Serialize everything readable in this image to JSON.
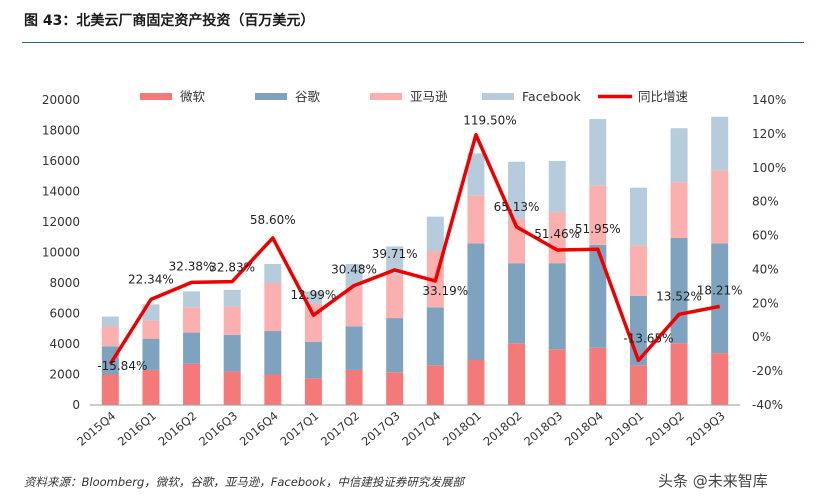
{
  "title": "图 43：北美云厂商固定资产投资（百万美元）",
  "source": "资料来源：Bloomberg，微软，谷歌，亚马逊，Facebook，中信建投证券研究发展部",
  "watermark": "头条 @未来智库",
  "chart_data": {
    "type": "bar",
    "stacked": true,
    "categories": [
      "2015Q4",
      "2016Q1",
      "2016Q2",
      "2016Q3",
      "2016Q4",
      "2017Q1",
      "2017Q2",
      "2017Q3",
      "2017Q4",
      "2018Q1",
      "2018Q2",
      "2018Q3",
      "2018Q4",
      "2019Q1",
      "2019Q2",
      "2019Q3"
    ],
    "series": [
      {
        "name": "微软",
        "color": "#f47a7a",
        "values": [
          2000,
          2300,
          2700,
          2200,
          2000,
          1750,
          2300,
          2150,
          2600,
          2950,
          4050,
          3650,
          3750,
          2600,
          4050,
          3400
        ]
      },
      {
        "name": "谷歌",
        "color": "#7fa3be",
        "values": [
          1850,
          2050,
          2050,
          2400,
          2850,
          2400,
          2850,
          3550,
          3800,
          7650,
          5250,
          5650,
          6750,
          4550,
          6900,
          7200
        ]
      },
      {
        "name": "亚马逊",
        "color": "#fbb0b0",
        "values": [
          1300,
          1200,
          1650,
          1850,
          3150,
          2500,
          2600,
          2850,
          3700,
          3150,
          2900,
          3350,
          3900,
          3300,
          3650,
          4800
        ]
      },
      {
        "name": "Facebook",
        "color": "#b6cbdb",
        "values": [
          650,
          1050,
          1050,
          1100,
          1250,
          800,
          1500,
          1850,
          2250,
          2750,
          3750,
          3350,
          4350,
          3800,
          3550,
          3500
        ]
      }
    ],
    "line": {
      "name": "同比增速",
      "color": "#ee0000",
      "values": [
        -15.84,
        22.34,
        32.38,
        32.83,
        58.6,
        12.99,
        30.48,
        39.71,
        33.19,
        119.5,
        65.13,
        51.46,
        51.95,
        -13.65,
        13.52,
        18.21
      ],
      "labels": [
        "-15.84%",
        "22.34%",
        "32.38%",
        "32.83%",
        "58.60%",
        "12.99%",
        "30.48%",
        "39.71%",
        "33.19%",
        "119.50%",
        "65.13%",
        "51.46%",
        "51.95%",
        "-13.65%",
        "13.52%",
        "18.21%"
      ]
    },
    "y_left": {
      "min": 0,
      "max": 20000,
      "step": 2000,
      "ticks": [
        "0",
        "2000",
        "4000",
        "6000",
        "8000",
        "10000",
        "12000",
        "14000",
        "16000",
        "18000",
        "20000"
      ]
    },
    "y_right": {
      "min": -40,
      "max": 140,
      "step": 20,
      "ticks": [
        "-40%",
        "-20%",
        "0%",
        "20%",
        "40%",
        "60%",
        "80%",
        "100%",
        "120%",
        "140%"
      ]
    },
    "legend_position": "top",
    "grid": false
  }
}
